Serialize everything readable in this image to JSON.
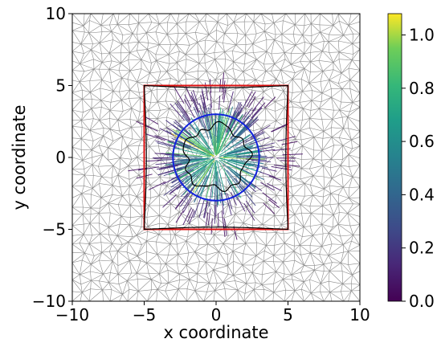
{
  "chart_data": {
    "type": "scatter",
    "title": "",
    "xlabel": "x coordinate",
    "ylabel": "y coordinate",
    "xlim": [
      -10,
      10
    ],
    "ylim": [
      -10,
      10
    ],
    "xticks": [
      -10,
      -5,
      0,
      5,
      10
    ],
    "yticks": [
      -10,
      -5,
      0,
      5,
      10
    ],
    "xtick_labels": [
      "−10",
      "−5",
      "0",
      "5",
      "10"
    ],
    "ytick_labels": [
      "−10",
      "−5",
      "0",
      "5",
      "10"
    ],
    "grid": false,
    "background_mesh": "gray triangular mesh covering the whole domain",
    "colorbar": {
      "colormap": "viridis",
      "range": [
        0.0,
        1.08
      ],
      "ticks": [
        0.0,
        0.2,
        0.4,
        0.6,
        0.8,
        1.0
      ],
      "tick_labels": [
        "0.0",
        "0.2",
        "0.4",
        "0.6",
        "0.8",
        "1.0"
      ]
    },
    "overlays": [
      {
        "name": "square region",
        "shape": "square",
        "color": "#dd1111",
        "corners": [
          [
            -5,
            -5
          ],
          [
            5,
            -5
          ],
          [
            5,
            5
          ],
          [
            -5,
            5
          ]
        ]
      },
      {
        "name": "circle",
        "shape": "circle",
        "color": "#1122dd",
        "center": [
          0,
          0
        ],
        "radius": 3
      },
      {
        "name": "inner contour",
        "shape": "closed curve",
        "color": "#000000",
        "approx_center": [
          0,
          0
        ],
        "approx_radius": 2.2
      }
    ],
    "vector_field": {
      "description": "radial arrows emanating from the origin, colored by magnitude",
      "center": [
        0,
        0
      ],
      "extent": 5.4,
      "max_magnitude_near_center": 1.08
    }
  }
}
